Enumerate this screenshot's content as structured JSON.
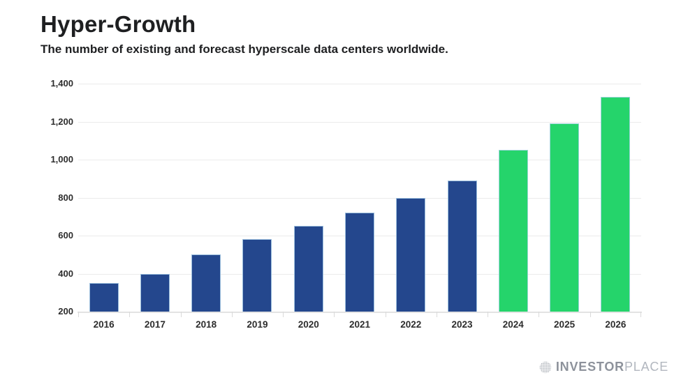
{
  "header": {
    "title": "Hyper-Growth",
    "subtitle": "The number of existing and forecast hyperscale data centers worldwide."
  },
  "chart_data": {
    "type": "bar",
    "title": "Hyper-Growth",
    "subtitle": "The number of existing and forecast hyperscale data centers worldwide.",
    "categories": [
      "2016",
      "2017",
      "2018",
      "2019",
      "2020",
      "2021",
      "2022",
      "2023",
      "2024",
      "2025",
      "2026"
    ],
    "values": [
      350,
      400,
      500,
      580,
      650,
      720,
      800,
      890,
      1050,
      1190,
      1330
    ],
    "segments": [
      "actual",
      "actual",
      "actual",
      "actual",
      "actual",
      "actual",
      "actual",
      "actual",
      "forecast",
      "forecast",
      "forecast"
    ],
    "xlabel": "",
    "ylabel": "",
    "ylim": [
      200,
      1400
    ],
    "ytick_interval": 200,
    "ytick_values": [
      200,
      400,
      600,
      800,
      1000,
      1200,
      1400
    ],
    "ytick_labels": [
      "200",
      "400",
      "600",
      "800",
      "1,000",
      "1,200",
      "1,400"
    ],
    "grid": true,
    "legend": "none",
    "colors": {
      "actual": "#24478D",
      "forecast": "#25D46B"
    }
  },
  "footer": {
    "logo_icon": "dotted-globe-icon",
    "logo_primary": "INVESTOR",
    "logo_secondary": "PLACE",
    "logo_icon_color": "#9aa0a8"
  }
}
